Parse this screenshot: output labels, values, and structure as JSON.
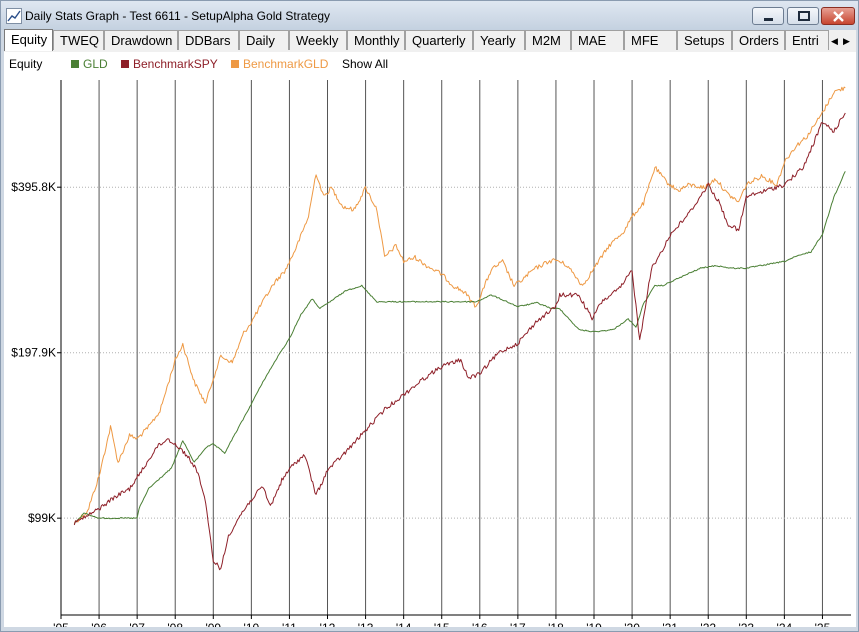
{
  "window": {
    "title": "Daily Stats Graph - Test 6611 - SetupAlpha Gold Strategy",
    "icon": "graph-icon"
  },
  "tabs": [
    {
      "label": "Equity",
      "active": true
    },
    {
      "label": "TWEQ"
    },
    {
      "label": "Drawdown"
    },
    {
      "label": "DDBars"
    },
    {
      "label": "Daily"
    },
    {
      "label": "Weekly"
    },
    {
      "label": "Monthly"
    },
    {
      "label": "Quarterly"
    },
    {
      "label": "Yearly"
    },
    {
      "label": "M2M"
    },
    {
      "label": "MAE"
    },
    {
      "label": "MFE"
    },
    {
      "label": "Setups"
    },
    {
      "label": "Orders"
    },
    {
      "label": "Entri"
    }
  ],
  "legend": {
    "title": "Equity",
    "items": [
      {
        "name": "GLD",
        "color": "#4a7f34"
      },
      {
        "name": "BenchmarkSPY",
        "color": "#8e1f28"
      },
      {
        "name": "BenchmarkGLD",
        "color": "#ee9944"
      }
    ],
    "show_all": "Show All"
  },
  "chart_data": {
    "type": "line",
    "y_scale": "log",
    "ylim": [
      66000,
      620000
    ],
    "xlim": [
      2005.0,
      2025.75
    ],
    "y_ticks": [
      {
        "value": 99000,
        "label": "$99K"
      },
      {
        "value": 197900,
        "label": "$197.9K"
      },
      {
        "value": 395800,
        "label": "$395.8K"
      }
    ],
    "x_ticks": [
      {
        "value": 2005,
        "label": "'05"
      },
      {
        "value": 2006,
        "label": "'06"
      },
      {
        "value": 2007,
        "label": "'07"
      },
      {
        "value": 2008,
        "label": "'08"
      },
      {
        "value": 2009,
        "label": "'09"
      },
      {
        "value": 2010,
        "label": "'10"
      },
      {
        "value": 2011,
        "label": "'11"
      },
      {
        "value": 2012,
        "label": "'12"
      },
      {
        "value": 2013,
        "label": "'13"
      },
      {
        "value": 2014,
        "label": "'14"
      },
      {
        "value": 2015,
        "label": "'15"
      },
      {
        "value": 2016,
        "label": "'16"
      },
      {
        "value": 2017,
        "label": "'17"
      },
      {
        "value": 2018,
        "label": "'18"
      },
      {
        "value": 2019,
        "label": "'19"
      },
      {
        "value": 2020,
        "label": "'20"
      },
      {
        "value": 2021,
        "label": "'21"
      },
      {
        "value": 2022,
        "label": "'22"
      },
      {
        "value": 2023,
        "label": "'23"
      },
      {
        "value": 2024,
        "label": "'24"
      },
      {
        "value": 2025,
        "label": "'25"
      }
    ],
    "grid": {
      "vertical": true,
      "horizontal_dotted": true
    },
    "series": [
      {
        "name": "GLD",
        "color": "#4a7f34",
        "x": [
          2005.35,
          2005.6,
          2006.0,
          2006.5,
          2007.0,
          2007.05,
          2007.3,
          2007.6,
          2007.9,
          2008.2,
          2008.5,
          2008.8,
          2009.0,
          2009.3,
          2009.6,
          2009.9,
          2010.3,
          2010.7,
          2011.0,
          2011.3,
          2011.6,
          2011.8,
          2012.1,
          2012.5,
          2012.9,
          2013.1,
          2013.3,
          2014.0,
          2015.0,
          2015.9,
          2016.3,
          2016.6,
          2017.0,
          2017.5,
          2017.9,
          2018.1,
          2018.6,
          2019.0,
          2019.5,
          2019.9,
          2020.1,
          2020.3,
          2020.6,
          2020.8,
          2021.2,
          2021.8,
          2022.2,
          2022.6,
          2023.0,
          2023.5,
          2024.0,
          2024.3,
          2024.7,
          2025.0,
          2025.3,
          2025.6
        ],
        "y": [
          97000,
          101000,
          99000,
          99000,
          99000,
          103000,
          112000,
          117000,
          122000,
          137000,
          125000,
          133000,
          135000,
          130000,
          142000,
          155000,
          175000,
          195000,
          210000,
          232000,
          248000,
          238000,
          246000,
          257000,
          262000,
          253000,
          245000,
          245000,
          245000,
          245000,
          252000,
          247000,
          240000,
          244000,
          238000,
          238000,
          218000,
          216000,
          218000,
          228000,
          220000,
          243000,
          262000,
          262000,
          270000,
          282000,
          285000,
          282000,
          282000,
          286000,
          290000,
          296000,
          302000,
          325000,
          380000,
          423000
        ]
      },
      {
        "name": "BenchmarkSPY",
        "color": "#8e1f28",
        "x": [
          2005.35,
          2005.7,
          2006.0,
          2006.4,
          2006.8,
          2007.2,
          2007.5,
          2007.8,
          2008.0,
          2008.3,
          2008.6,
          2008.8,
          2009.0,
          2009.2,
          2009.4,
          2009.7,
          2010.0,
          2010.3,
          2010.5,
          2010.8,
          2011.1,
          2011.4,
          2011.7,
          2012.0,
          2012.5,
          2013.0,
          2013.5,
          2014.0,
          2014.5,
          2015.0,
          2015.5,
          2015.7,
          2016.0,
          2016.2,
          2016.5,
          2017.0,
          2017.5,
          2018.0,
          2018.1,
          2018.6,
          2018.95,
          2019.2,
          2019.7,
          2020.0,
          2020.2,
          2020.5,
          2020.8,
          2021.0,
          2021.5,
          2022.0,
          2022.3,
          2022.5,
          2022.8,
          2023.0,
          2023.5,
          2024.0,
          2024.5,
          2025.0,
          2025.3,
          2025.6
        ],
        "y": [
          97000,
          100000,
          103000,
          108000,
          112000,
          123000,
          133000,
          138000,
          135000,
          129000,
          120000,
          105000,
          83000,
          80000,
          92000,
          100000,
          107000,
          113000,
          104000,
          116000,
          124000,
          129000,
          109000,
          121000,
          131000,
          143000,
          156000,
          166000,
          177000,
          187000,
          192000,
          178000,
          181000,
          188000,
          198000,
          206000,
          226000,
          240000,
          252000,
          252000,
          228000,
          245000,
          260000,
          280000,
          208000,
          280000,
          305000,
          324000,
          355000,
          400000,
          370000,
          340000,
          330000,
          380000,
          390000,
          400000,
          430000,
          520000,
          500000,
          540000
        ]
      },
      {
        "name": "BenchmarkGLD",
        "color": "#ee9944",
        "x": [
          2005.35,
          2005.7,
          2006.0,
          2006.3,
          2006.5,
          2006.8,
          2007.0,
          2007.3,
          2007.6,
          2008.0,
          2008.2,
          2008.5,
          2008.8,
          2009.0,
          2009.2,
          2009.5,
          2009.8,
          2010.0,
          2010.3,
          2010.6,
          2010.9,
          2011.2,
          2011.5,
          2011.7,
          2011.9,
          2012.1,
          2012.4,
          2012.7,
          2013.0,
          2013.3,
          2013.5,
          2013.8,
          2014.0,
          2014.3,
          2014.6,
          2015.0,
          2015.3,
          2015.6,
          2015.9,
          2016.3,
          2016.6,
          2016.9,
          2017.1,
          2017.4,
          2017.8,
          2018.0,
          2018.3,
          2018.7,
          2019.0,
          2019.4,
          2019.8,
          2020.0,
          2020.3,
          2020.6,
          2020.9,
          2021.2,
          2021.5,
          2021.9,
          2022.2,
          2022.5,
          2022.8,
          2023.0,
          2023.4,
          2023.8,
          2024.0,
          2024.3,
          2024.6,
          2025.0,
          2025.3,
          2025.6
        ],
        "y": [
          97000,
          102000,
          118000,
          145000,
          125000,
          140000,
          138000,
          145000,
          155000,
          192000,
          205000,
          175000,
          160000,
          178000,
          195000,
          190000,
          215000,
          225000,
          245000,
          265000,
          280000,
          310000,
          350000,
          420000,
          380000,
          395000,
          365000,
          360000,
          395000,
          360000,
          295000,
          310000,
          290000,
          295000,
          285000,
          275000,
          262000,
          255000,
          240000,
          280000,
          290000,
          262000,
          268000,
          280000,
          290000,
          292000,
          285000,
          262000,
          282000,
          310000,
          330000,
          350000,
          370000,
          430000,
          405000,
          390000,
          400000,
          395000,
          410000,
          385000,
          372000,
          400000,
          415000,
          400000,
          440000,
          470000,
          490000,
          540000,
          590000,
          600000
        ]
      }
    ]
  }
}
